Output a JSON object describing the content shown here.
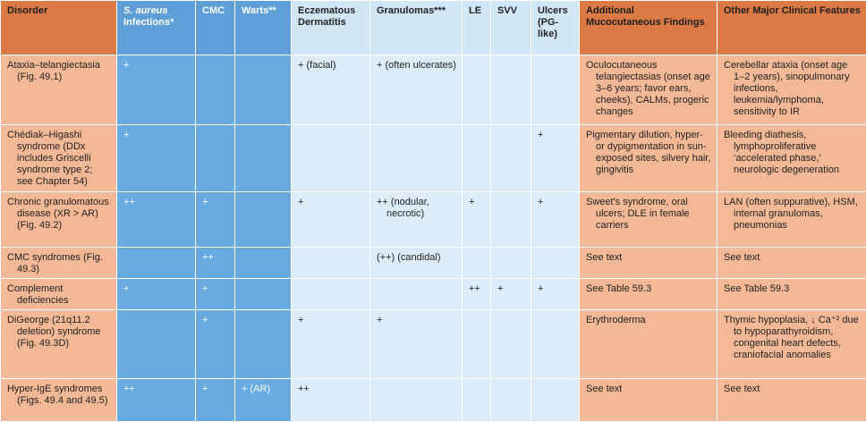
{
  "table": {
    "header": [
      "Disorder",
      {
        "italic": "S. aureus",
        "text": "Infections*"
      },
      "CMC",
      "Warts**",
      "Eczematous Dermatitis",
      "Granulomas***",
      "LE",
      "SVV",
      "Ulcers (PG-like)",
      "Additional Mucocutaneous Findings",
      "Other Major Clinical Features"
    ],
    "rows": [
      [
        "Ataxia–telangiectasia (Fig. 49.1)",
        "+",
        null,
        null,
        "+ (facial)",
        "+ (often ulcerates)",
        null,
        null,
        null,
        "Oculocutaneous telangiectasias (onset age 3–6 years; favor ears, cheeks), CALMs, progeric changes",
        "Cerebellar ataxia (onset age 1–2 years), sinopulmonary infections, leukemia/lymphoma, sensitivity to IR"
      ],
      [
        "Chédiak–Higashi syndrome (DDx includes Griscelli syndrome type 2; see Chapter 54)",
        "+",
        null,
        null,
        null,
        null,
        null,
        null,
        "+",
        "Pigmentary dilution, hyper- or dypigmentation in sun-exposed sites, silvery hair, gingivitis",
        "Bleeding diathesis, lymphoproliferative ‘accelerated phase,’ neurologic degeneration"
      ],
      [
        "Chronic granulomatous disease (XR > AR) (Fig. 49.2)",
        "++",
        "+",
        null,
        "+",
        "++ (nodular, necrotic)",
        "+",
        null,
        "+",
        "Sweet's syndrome, oral ulcers; DLE in female carriers",
        "LAN (often suppurative), HSM, internal granulomas, pneumonias"
      ],
      [
        "CMC syndromes (Fig. 49.3)",
        null,
        "++",
        null,
        null,
        "(++) (candidal)",
        null,
        null,
        null,
        "See text",
        "See text"
      ],
      [
        "Complement deficiencies",
        "+",
        "+",
        null,
        null,
        null,
        "++",
        "+",
        "+",
        "See Table 59.3",
        "See Table 59.3"
      ],
      [
        "DiGeorge (21q11.2 deletion) syndrome (Fig. 49.3D)",
        null,
        "+",
        null,
        "+",
        "+",
        null,
        null,
        null,
        "Erythroderma",
        "Thymic hypoplasia, ↓ Ca⁺² due to hypoparathyroidism, congenital heart defects, craniofacial anomalies"
      ],
      [
        "Hyper-IgE syndromes (Figs. 49.4 and 49.5)",
        "++",
        "+",
        "+ (AR)",
        "++",
        null,
        null,
        null,
        null,
        "See text",
        "See text"
      ]
    ]
  }
}
